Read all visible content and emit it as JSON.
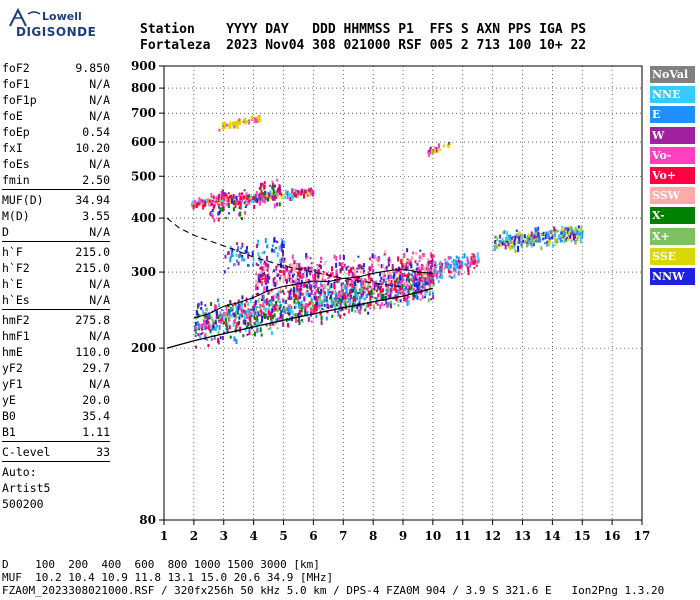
{
  "logo": {
    "line1": "Lowell",
    "line2": "DIGISONDE"
  },
  "header": {
    "labels": "Station    YYYY DAY   DDD HHMMSS P1  FFS S AXN PPS IGA PS",
    "values": "Fortaleza  2023 Nov04 308 021000 RSF 005 2 713 100 10+ 22"
  },
  "params": {
    "group1": [
      {
        "name": "foF2",
        "value": "9.850"
      },
      {
        "name": "foF1",
        "value": "N/A"
      },
      {
        "name": "foF1p",
        "value": "N/A"
      },
      {
        "name": "foE",
        "value": "N/A"
      },
      {
        "name": "foEp",
        "value": "0.54"
      },
      {
        "name": "fxI",
        "value": "10.20"
      },
      {
        "name": "foEs",
        "value": "N/A"
      },
      {
        "name": "fmin",
        "value": "2.50"
      }
    ],
    "group2": [
      {
        "name": "MUF(D)",
        "value": "34.94"
      },
      {
        "name": "M(D)",
        "value": "3.55"
      },
      {
        "name": "D",
        "value": "N/A"
      }
    ],
    "group3": [
      {
        "name": "h`F",
        "value": "215.0"
      },
      {
        "name": "h`F2",
        "value": "215.0"
      },
      {
        "name": "h`E",
        "value": "N/A"
      },
      {
        "name": "h`Es",
        "value": "N/A"
      }
    ],
    "group4": [
      {
        "name": "hmF2",
        "value": "275.8"
      },
      {
        "name": "hmF1",
        "value": "N/A"
      },
      {
        "name": "hmE",
        "value": "110.0"
      },
      {
        "name": "yF2",
        "value": "29.7"
      },
      {
        "name": "yF1",
        "value": "N/A"
      },
      {
        "name": "yE",
        "value": "20.0"
      },
      {
        "name": "B0",
        "value": "35.4"
      },
      {
        "name": "B1",
        "value": "1.11"
      }
    ],
    "group5": [
      {
        "name": "C-level",
        "value": "33"
      }
    ],
    "auto": [
      "Auto:",
      "Artist5",
      "500200"
    ]
  },
  "legend": [
    {
      "label": "NoVal",
      "color": "#808080"
    },
    {
      "label": "NNE",
      "color": "#33ccff"
    },
    {
      "label": "E",
      "color": "#1e90ff"
    },
    {
      "label": "W",
      "color": "#a020a0"
    },
    {
      "label": "Vo-",
      "color": "#ff40c0"
    },
    {
      "label": "Vo+",
      "color": "#ff0040"
    },
    {
      "label": "SSW",
      "color": "#ffaaaa"
    },
    {
      "label": "X-",
      "color": "#008000"
    },
    {
      "label": "X+",
      "color": "#80c060"
    },
    {
      "label": "SSE",
      "color": "#d8d800"
    },
    {
      "label": "NNW",
      "color": "#2020e0"
    }
  ],
  "footer": {
    "line1": "D    100  200  400  600  800 1000 1500 3000 [km]",
    "line2": "MUF  10.2 10.4 10.9 11.8 13.1 15.0 20.6 34.9 [MHz]",
    "line3": "FZA0M_2023308021000.RSF / 320fx256h 50 kHz 5.0 km / DPS-4 FZA0M 904 / 3.9 S 321.6 E   Ion2Png 1.3.20"
  },
  "chart_data": {
    "type": "scatter",
    "xlim": [
      1,
      17
    ],
    "ylim": [
      80,
      900
    ],
    "y_scale": "log",
    "x_ticks": [
      1,
      2,
      3,
      4,
      5,
      6,
      7,
      8,
      9,
      10,
      11,
      12,
      13,
      14,
      15,
      16,
      17
    ],
    "y_ticks": [
      80,
      200,
      300,
      400,
      500,
      600,
      700,
      800,
      900
    ],
    "grid": true,
    "clusters": [
      {
        "x": [
          2.0,
          10.0
        ],
        "y0": 225,
        "y1": 285,
        "spread": 30,
        "n": 1100,
        "colors": [
          "#ff0040",
          "#ff40c0",
          "#a020a0",
          "#008000",
          "#80c060",
          "#1e90ff",
          "#2020e0",
          "#33ccff"
        ]
      },
      {
        "x": [
          4.0,
          10.0
        ],
        "y0": 290,
        "y1": 305,
        "spread": 35,
        "n": 500,
        "colors": [
          "#ff0040",
          "#ff40c0",
          "#a020a0",
          "#ffaaaa",
          "#2020e0"
        ]
      },
      {
        "x": [
          10.0,
          11.5
        ],
        "y0": 300,
        "y1": 320,
        "spread": 20,
        "n": 120,
        "colors": [
          "#ff0040",
          "#ff40c0",
          "#33ccff",
          "#1e90ff"
        ]
      },
      {
        "x": [
          12.0,
          15.0
        ],
        "y0": 350,
        "y1": 370,
        "spread": 22,
        "n": 260,
        "colors": [
          "#33ccff",
          "#1e90ff",
          "#d8d800",
          "#a020a0",
          "#2020e0",
          "#80c060"
        ]
      },
      {
        "x": [
          1.9,
          6.0
        ],
        "y0": 430,
        "y1": 460,
        "spread": 12,
        "n": 250,
        "colors": [
          "#d8d800",
          "#ff40c0",
          "#ff0040",
          "#a020a0",
          "#33ccff"
        ]
      },
      {
        "x": [
          2.5,
          5.0
        ],
        "y0": 420,
        "y1": 470,
        "spread": 45,
        "n": 120,
        "colors": [
          "#ff0040",
          "#ff40c0",
          "#2020e0",
          "#a020a0",
          "#008000"
        ]
      },
      {
        "x": [
          2.8,
          4.2
        ],
        "y0": 650,
        "y1": 680,
        "spread": 15,
        "n": 60,
        "colors": [
          "#d8d800",
          "#d8d800",
          "#ff40c0"
        ]
      },
      {
        "x": [
          9.8,
          10.6
        ],
        "y0": 570,
        "y1": 590,
        "spread": 12,
        "n": 25,
        "colors": [
          "#d8d800",
          "#a020a0",
          "#ff40c0"
        ]
      },
      {
        "x": [
          3.0,
          5.0
        ],
        "y0": 320,
        "y1": 345,
        "spread": 30,
        "n": 80,
        "colors": [
          "#2020e0",
          "#33ccff",
          "#1e90ff",
          "#a020a0"
        ]
      }
    ],
    "trace_lower": {
      "x": [
        1.1,
        2,
        3,
        4,
        5,
        6,
        7,
        8,
        9,
        10
      ],
      "y": [
        200,
        208,
        216,
        224,
        232,
        240,
        248,
        256,
        264,
        275
      ]
    },
    "trace_upper": {
      "x": [
        2,
        2.5,
        3,
        3.5,
        4,
        4.5,
        5,
        5.5,
        6,
        6.5,
        7,
        7.5,
        8,
        8.5,
        9,
        9.5,
        10
      ],
      "y": [
        235,
        240,
        250,
        255,
        262,
        272,
        278,
        282,
        286,
        285,
        290,
        292,
        298,
        302,
        305,
        300,
        298
      ]
    },
    "profile": {
      "x": [
        1.1,
        1.5,
        2,
        2.5,
        3,
        3.5,
        4,
        5,
        6,
        7,
        8,
        8.5,
        9
      ],
      "y": [
        400,
        380,
        365,
        355,
        345,
        335,
        325,
        310,
        300,
        290,
        283,
        280,
        277
      ]
    }
  }
}
